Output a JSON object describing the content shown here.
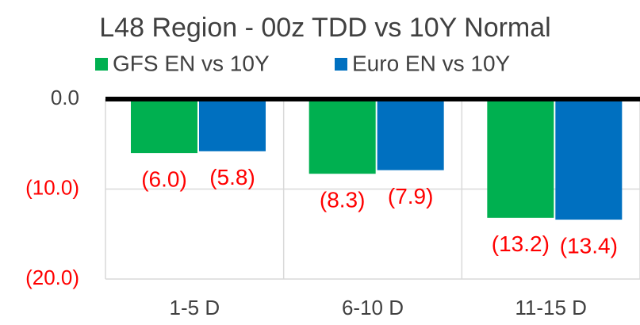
{
  "chart_data": {
    "type": "bar",
    "title": "L48 Region - 00z TDD vs 10Y Normal",
    "categories": [
      "1-5 D",
      "6-10 D",
      "11-15 D"
    ],
    "series": [
      {
        "name": "GFS EN vs 10Y",
        "color": "#00b050",
        "values": [
          -6.0,
          -8.3,
          -13.2
        ],
        "value_labels": [
          "(6.0)",
          "(8.3)",
          "(13.2)"
        ]
      },
      {
        "name": "Euro EN vs 10Y",
        "color": "#0070c0",
        "values": [
          -5.8,
          -7.9,
          -13.4
        ],
        "value_labels": [
          "(5.8)",
          "(7.9)",
          "(13.4)"
        ]
      }
    ],
    "ylim": [
      -20,
      0
    ],
    "yticks": [
      {
        "value": 0,
        "label": "0.0"
      },
      {
        "value": -10,
        "label": "(10.0)"
      },
      {
        "value": -20,
        "label": "(20.0)"
      }
    ],
    "grid": true,
    "legend": "top"
  }
}
